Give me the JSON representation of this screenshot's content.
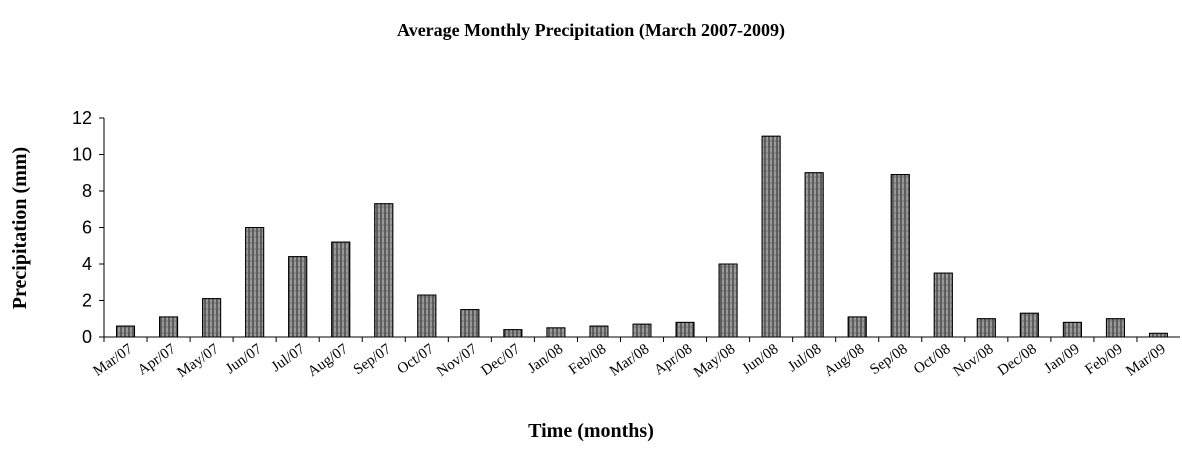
{
  "chart_data": {
    "type": "bar",
    "title": "Average Monthly Precipitation  (March 2007-2009)",
    "x_label": "Time (months)",
    "y_label": "Precipitation (mm)",
    "categories": [
      "Mar/07",
      "Apr/07",
      "May/07",
      "Jun/07",
      "Jul/07",
      "Aug/07",
      "Sep/07",
      "Oct/07",
      "Nov/07",
      "Dec/07",
      "Jan/08",
      "Feb/08",
      "Mar/08",
      "Apr/08",
      "May/08",
      "Jun/08",
      "Jul/08",
      "Aug/08",
      "Sep/08",
      "Oct/08",
      "Nov/08",
      "Dec/08",
      "Jan/09",
      "Feb/09",
      "Mar/09"
    ],
    "values": [
      0.6,
      1.1,
      2.1,
      6.0,
      4.4,
      5.2,
      7.3,
      2.3,
      1.5,
      0.4,
      0.5,
      0.6,
      0.7,
      0.8,
      4.0,
      11.0,
      9.0,
      1.1,
      8.9,
      3.5,
      1.0,
      1.3,
      0.8,
      1.0,
      0.2
    ],
    "color": "#8a8a8a",
    "ylim": [
      0,
      12
    ],
    "yticks": [
      0,
      2,
      4,
      6,
      8,
      10,
      12
    ],
    "grid": false
  }
}
